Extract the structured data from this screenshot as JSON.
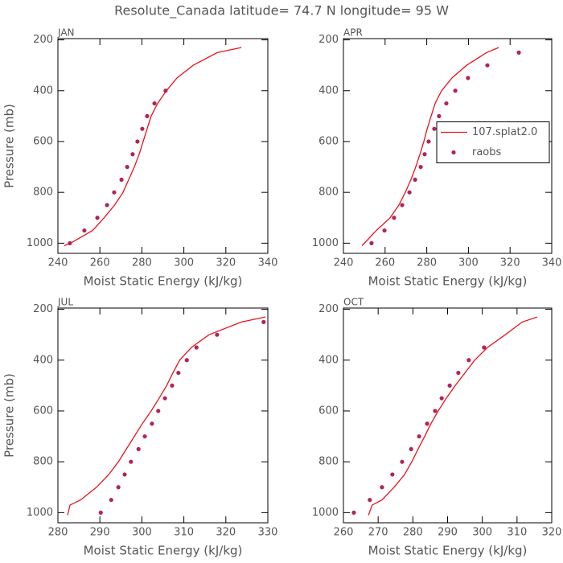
{
  "title": "Resolute_Canada  latitude= 74.7 N longitude= 95 W",
  "chart_data": [
    {
      "type": "line",
      "title": "JAN",
      "xlabel": "Moist Static Energy (kJ/kg)",
      "ylabel": "Pressure (mb)",
      "xlim": [
        240,
        340
      ],
      "ylim": [
        1040,
        195
      ],
      "xticks": [
        240,
        260,
        280,
        300,
        320,
        340
      ],
      "yticks": [
        200,
        400,
        600,
        800,
        1000
      ],
      "series": [
        {
          "name": "107.splat2.0",
          "type": "line",
          "color": "#e8141c",
          "x": [
            243,
            246,
            256.5,
            262,
            267,
            271,
            273.7,
            276.4,
            278.7,
            280.6,
            282.5,
            284.4,
            287.5,
            291.7,
            296.7,
            304.4,
            315.9,
            327.4
          ],
          "values": [
            1010,
            1000,
            950,
            900,
            850,
            800,
            750,
            700,
            650,
            600,
            550,
            500,
            450,
            400,
            350,
            300,
            250,
            230
          ]
        },
        {
          "name": "raobs",
          "type": "scatter",
          "color": "#b0245a",
          "x": [
            245.7,
            252.6,
            258.8,
            263.4,
            266.8,
            270.3,
            273,
            275.6,
            277.9,
            280.2,
            282.5,
            286,
            291.3
          ],
          "values": [
            1000,
            950,
            900,
            850,
            800,
            750,
            700,
            650,
            600,
            550,
            500,
            450,
            400
          ]
        }
      ]
    },
    {
      "type": "line",
      "title": "APR",
      "xlabel": "Moist Static Energy (kJ/kg)",
      "xlim": [
        240,
        340
      ],
      "ylim": [
        1040,
        195
      ],
      "xticks": [
        240,
        260,
        280,
        300,
        320,
        340
      ],
      "yticks": [
        200,
        400,
        600,
        800,
        1000
      ],
      "legend": "right",
      "series": [
        {
          "name": "107.splat2.0",
          "type": "line",
          "color": "#e8141c",
          "x": [
            248.9,
            255.8,
            262.4,
            266.6,
            269.7,
            272.4,
            274.7,
            276.7,
            278.6,
            280.2,
            282.1,
            284,
            287.1,
            292.1,
            299.1,
            308.7,
            314.5
          ],
          "values": [
            1010,
            950,
            900,
            850,
            800,
            750,
            700,
            650,
            600,
            550,
            500,
            450,
            400,
            350,
            300,
            250,
            230
          ]
        },
        {
          "name": "raobs",
          "type": "scatter",
          "color": "#b0245a",
          "x": [
            253.5,
            259.7,
            264.3,
            268.2,
            271.7,
            274.4,
            277.1,
            279,
            280.9,
            283.6,
            285.9,
            289.4,
            293.7,
            299.8,
            309.1,
            324.2
          ],
          "values": [
            1000,
            950,
            900,
            850,
            800,
            750,
            700,
            650,
            600,
            550,
            500,
            450,
            400,
            350,
            300,
            250
          ]
        }
      ]
    },
    {
      "type": "line",
      "title": "JUL",
      "xlabel": "Moist Static Energy (kJ/kg)",
      "ylabel": "Pressure (mb)",
      "xlim": [
        280,
        330
      ],
      "ylim": [
        1040,
        195
      ],
      "xticks": [
        280,
        290,
        300,
        310,
        320,
        330
      ],
      "yticks": [
        200,
        400,
        600,
        800,
        1000
      ],
      "series": [
        {
          "name": "107.splat2.0",
          "type": "line",
          "color": "#e8141c",
          "x": [
            282.3,
            282.9,
            285.4,
            289.2,
            292.1,
            294.4,
            296.3,
            298.2,
            300.1,
            302.2,
            304.1,
            305.9,
            307.4,
            309,
            311.8,
            316,
            323.7,
            329.4
          ],
          "values": [
            1010,
            970,
            950,
            900,
            850,
            800,
            750,
            700,
            650,
            600,
            550,
            500,
            450,
            400,
            350,
            300,
            250,
            230
          ]
        },
        {
          "name": "raobs",
          "type": "scatter",
          "color": "#b0245a",
          "x": [
            290.2,
            292.7,
            294.4,
            295.9,
            297.4,
            299.2,
            300.7,
            302.4,
            303.9,
            305.5,
            307.2,
            308.7,
            310.7,
            313,
            317.9,
            329
          ],
          "values": [
            1000,
            950,
            900,
            850,
            800,
            750,
            700,
            650,
            600,
            550,
            500,
            450,
            400,
            350,
            300,
            250
          ]
        }
      ]
    },
    {
      "type": "line",
      "title": "OCT",
      "xlabel": "Moist Static Energy (kJ/kg)",
      "xlim": [
        260,
        320
      ],
      "ylim": [
        1040,
        195
      ],
      "xticks": [
        260,
        270,
        280,
        290,
        300,
        310,
        320
      ],
      "yticks": [
        200,
        400,
        600,
        800,
        1000
      ],
      "series": [
        {
          "name": "107.splat2.0",
          "type": "line",
          "color": "#e8141c",
          "x": [
            267.2,
            268.3,
            271.1,
            274.6,
            277.6,
            279.7,
            281.5,
            283.4,
            285.2,
            287.3,
            289.6,
            292.2,
            295,
            297.8,
            301.5,
            306.6,
            311.5,
            315.8
          ],
          "values": [
            1010,
            970,
            950,
            900,
            850,
            800,
            750,
            700,
            650,
            600,
            550,
            500,
            450,
            400,
            350,
            300,
            250,
            230
          ]
        },
        {
          "name": "raobs",
          "type": "scatter",
          "color": "#b0245a",
          "x": [
            263,
            267.6,
            271.1,
            274.1,
            276.9,
            279.5,
            281.8,
            284.1,
            286.4,
            288.3,
            290.6,
            293.1,
            296.1,
            300.5
          ],
          "values": [
            1000,
            950,
            900,
            850,
            800,
            750,
            700,
            650,
            600,
            550,
            500,
            450,
            400,
            350
          ]
        }
      ]
    }
  ]
}
